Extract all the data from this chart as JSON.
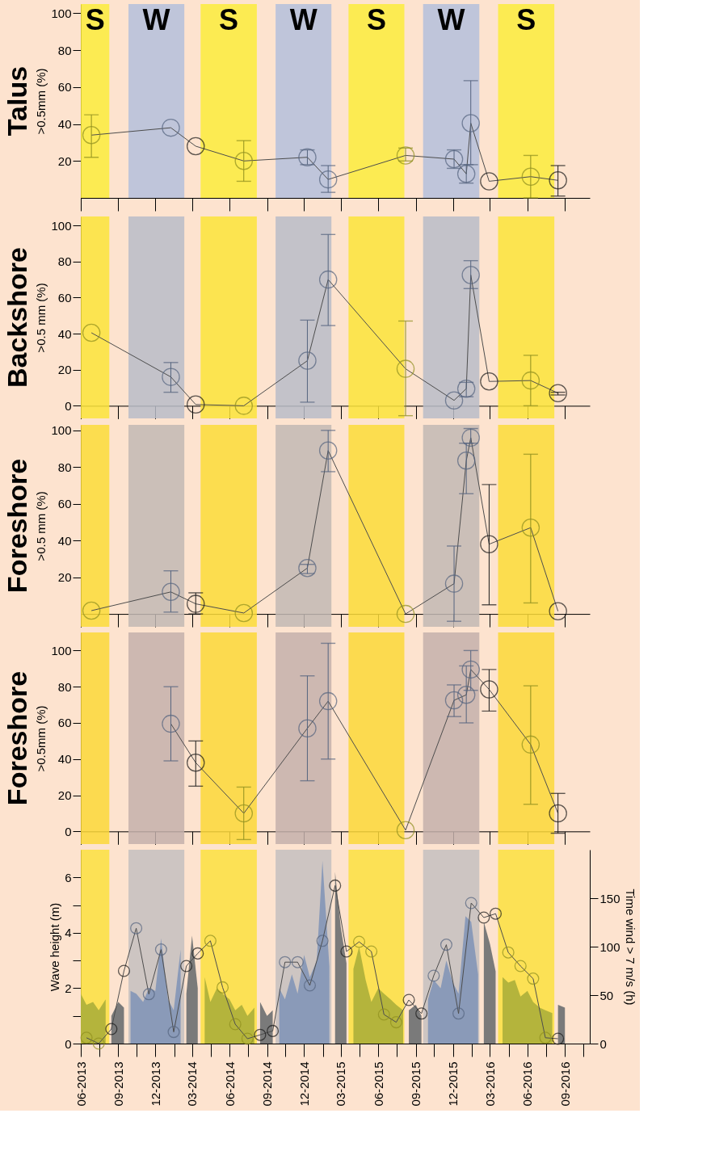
{
  "chart_data": [
    {
      "type": "line",
      "title": "Talus",
      "ylabel": ">0.5mm (%)",
      "xlim": [
        "2013-06-01",
        "2016-11-01"
      ],
      "xticks": [
        "2013-06-01",
        "2013-09-01",
        "2013-12-01",
        "2014-03-01",
        "2014-06-01",
        "2014-09-01",
        "2014-12-01",
        "2015-03-01",
        "2015-06-01",
        "2015-09-01",
        "2015-12-01",
        "2016-03-01",
        "2016-06-01",
        "2016-09-01"
      ],
      "ylim": [
        0,
        105
      ],
      "yticks": [
        20,
        40,
        60,
        80,
        100
      ],
      "tick_labels": "y",
      "marker": "circle",
      "line_style": "solid",
      "bands": [
        {
          "axis": "x",
          "from": "2013-06-01",
          "to": "2013-08-10",
          "label": "S",
          "color": "#fbec3c"
        },
        {
          "axis": "x",
          "from": "2013-09-26",
          "to": "2014-02-10",
          "label": "W",
          "color": "#b4c0dc"
        },
        {
          "axis": "x",
          "from": "2014-03-22",
          "to": "2014-08-07",
          "label": "S",
          "color": "#fbec3c"
        },
        {
          "axis": "x",
          "from": "2014-09-22",
          "to": "2015-02-06",
          "label": "W",
          "color": "#b4c0dc"
        },
        {
          "axis": "x",
          "from": "2015-03-20",
          "to": "2015-08-04",
          "label": "S",
          "color": "#fbec3c"
        },
        {
          "axis": "x",
          "from": "2015-09-19",
          "to": "2016-02-04",
          "label": "W",
          "color": "#b4c0dc"
        },
        {
          "axis": "x",
          "from": "2016-03-21",
          "to": "2016-08-06",
          "label": "S",
          "color": "#fbec3c"
        }
      ],
      "series": [
        {
          "color": "#4d4d4d",
          "x": [
            "2013-06-27",
            "2014-01-08",
            "2014-03-10",
            "2014-07-06",
            "2014-12-09",
            "2015-01-29",
            "2015-08-07",
            "2015-12-04",
            "2016-01-03",
            "2016-01-14",
            "2016-02-28",
            "2016-06-09",
            "2016-08-15"
          ],
          "values": [
            34,
            38,
            28,
            20,
            22,
            10,
            23,
            21,
            13,
            40.5,
            9,
            11.5,
            9.5
          ],
          "colors": [
            "#8f8f1e",
            "#55647f",
            "#1a1a1a",
            "#8f8f1e",
            "#55647f",
            "#55647f",
            "#8f8f1e",
            "#55647f",
            "#55647f",
            "#55647f",
            "#1a1a1a",
            "#8f8f1e",
            "#1a1a1a"
          ],
          "errors": [
            [
              22,
              45
            ],
            null,
            null,
            [
              9,
              31
            ],
            [
              18,
              26
            ],
            [
              3,
              17.5
            ],
            [
              20,
              27
            ],
            [
              16,
              26
            ],
            [
              8,
              18
            ],
            [
              18,
              63.5
            ],
            null,
            [
              0,
              23
            ],
            [
              1,
              17.5
            ]
          ]
        }
      ]
    },
    {
      "type": "line",
      "title": "Backshore",
      "ylabel": ">0.5 mm (%)",
      "xlim": [
        "2013-06-01",
        "2016-11-01"
      ],
      "xticks": [
        "2013-06-01",
        "2013-09-01",
        "2013-12-01",
        "2014-03-01",
        "2014-06-01",
        "2014-09-01",
        "2014-12-01",
        "2015-03-01",
        "2015-06-01",
        "2015-09-01",
        "2015-12-01",
        "2016-03-01",
        "2016-06-01",
        "2016-09-01"
      ],
      "ylim": [
        -7,
        105
      ],
      "yticks": [
        0,
        20,
        40,
        60,
        80,
        100
      ],
      "tick_labels": "y",
      "marker": "circle",
      "line_style": "solid",
      "bands": [
        {
          "axis": "x",
          "from": "2013-06-01",
          "to": "2013-08-10",
          "color": "#fbe43a"
        },
        {
          "axis": "x",
          "from": "2013-09-26",
          "to": "2014-02-10",
          "color": "#b9bcc8"
        },
        {
          "axis": "x",
          "from": "2014-03-22",
          "to": "2014-08-07",
          "color": "#fbe43a"
        },
        {
          "axis": "x",
          "from": "2014-09-22",
          "to": "2015-02-06",
          "color": "#b9bcc8"
        },
        {
          "axis": "x",
          "from": "2015-03-20",
          "to": "2015-08-04",
          "color": "#fbe43a"
        },
        {
          "axis": "x",
          "from": "2015-09-19",
          "to": "2016-02-04",
          "color": "#b9bcc8"
        },
        {
          "axis": "x",
          "from": "2016-03-21",
          "to": "2016-08-06",
          "color": "#fbe43a"
        }
      ],
      "series": [
        {
          "color": "#4d4d4d",
          "x": [
            "2013-06-27",
            "2014-01-08",
            "2014-03-10",
            "2014-07-06",
            "2014-12-09",
            "2015-01-29",
            "2015-08-07",
            "2015-12-04",
            "2016-01-03",
            "2016-01-14",
            "2016-02-28",
            "2016-06-09",
            "2016-08-15"
          ],
          "values": [
            40.5,
            16,
            0.7,
            0,
            25,
            70,
            20.5,
            3,
            9.5,
            72.5,
            13.5,
            14,
            7
          ],
          "colors": [
            "#8f8f1e",
            "#55647f",
            "#1a1a1a",
            "#8f8f1e",
            "#55647f",
            "#55647f",
            "#8f8f1e",
            "#55647f",
            "#55647f",
            "#55647f",
            "#1a1a1a",
            "#8f8f1e",
            "#1a1a1a"
          ],
          "errors": [
            null,
            [
              7.5,
              24
            ],
            null,
            null,
            [
              2,
              47.5
            ],
            [
              44.5,
              95
            ],
            [
              -5.5,
              47
            ],
            null,
            [
              5,
              13
            ],
            [
              65,
              80.5
            ],
            null,
            [
              0,
              28
            ],
            [
              6,
              7.5
            ]
          ]
        }
      ]
    },
    {
      "type": "line",
      "title": "Foreshore",
      "ylabel": ">0.5 mm (%)",
      "xlim": [
        "2013-06-01",
        "2016-11-01"
      ],
      "xticks": [
        "2013-06-01",
        "2013-09-01",
        "2013-12-01",
        "2014-03-01",
        "2014-06-01",
        "2014-09-01",
        "2014-12-01",
        "2015-03-01",
        "2015-06-01",
        "2015-09-01",
        "2015-12-01",
        "2016-03-01",
        "2016-06-01",
        "2016-09-01"
      ],
      "ylim": [
        -7,
        103
      ],
      "yticks": [
        20,
        40,
        60,
        80,
        100
      ],
      "tick_labels": "y",
      "marker": "circle",
      "line_style": "solid",
      "bands": [
        {
          "axis": "x",
          "from": "2013-06-01",
          "to": "2013-08-10",
          "color": "#fbdc38"
        },
        {
          "axis": "x",
          "from": "2013-09-26",
          "to": "2014-02-10",
          "color": "#c2b8b4"
        },
        {
          "axis": "x",
          "from": "2014-03-22",
          "to": "2014-08-07",
          "color": "#fbdc38"
        },
        {
          "axis": "x",
          "from": "2014-09-22",
          "to": "2015-02-06",
          "color": "#c2b8b4"
        },
        {
          "axis": "x",
          "from": "2015-03-20",
          "to": "2015-08-04",
          "color": "#fbdc38"
        },
        {
          "axis": "x",
          "from": "2015-09-19",
          "to": "2016-02-04",
          "color": "#c2b8b4"
        },
        {
          "axis": "x",
          "from": "2016-03-21",
          "to": "2016-08-06",
          "color": "#fbdc38"
        }
      ],
      "series": [
        {
          "color": "#4d4d4d",
          "x": [
            "2013-06-27",
            "2014-01-08",
            "2014-03-10",
            "2014-07-06",
            "2014-12-09",
            "2015-01-29",
            "2015-08-07",
            "2015-12-04",
            "2016-01-03",
            "2016-01-14",
            "2016-02-28",
            "2016-06-09",
            "2016-08-15"
          ],
          "values": [
            1.8,
            12,
            5.5,
            0.5,
            25,
            89,
            0,
            16.5,
            83.5,
            96,
            38,
            47,
            1.5
          ],
          "colors": [
            "#8f8f1e",
            "#55647f",
            "#1a1a1a",
            "#8f8f1e",
            "#55647f",
            "#55647f",
            "#8f8f1e",
            "#55647f",
            "#55647f",
            "#55647f",
            "#1a1a1a",
            "#8f8f1e",
            "#1a1a1a"
          ],
          "errors": [
            null,
            [
              1,
              23.5
            ],
            [
              0,
              11.5
            ],
            null,
            [
              22,
              27
            ],
            [
              77.5,
              100
            ],
            null,
            [
              -4,
              37
            ],
            [
              65.5,
              93
            ],
            [
              93,
              101
            ],
            [
              5,
              70.5
            ],
            [
              6,
              87
            ],
            null
          ]
        }
      ]
    },
    {
      "type": "line",
      "title": "Foreshore",
      "ylabel": ">0.5mm (%)",
      "xlim": [
        "2013-06-01",
        "2016-11-01"
      ],
      "xticks": [
        "2013-06-01",
        "2013-09-01",
        "2013-12-01",
        "2014-03-01",
        "2014-06-01",
        "2014-09-01",
        "2014-12-01",
        "2015-03-01",
        "2015-06-01",
        "2015-09-01",
        "2015-12-01",
        "2016-03-01",
        "2016-06-01",
        "2016-09-01"
      ],
      "ylim": [
        -7,
        110
      ],
      "yticks": [
        0,
        20,
        40,
        60,
        80,
        100
      ],
      "tick_labels": "y",
      "marker": "circle",
      "line_style": "solid",
      "bands": [
        {
          "axis": "x",
          "from": "2013-06-01",
          "to": "2013-08-10",
          "color": "#fbd838"
        },
        {
          "axis": "x",
          "from": "2013-09-26",
          "to": "2014-02-10",
          "color": "#c4b0ac"
        },
        {
          "axis": "x",
          "from": "2014-03-22",
          "to": "2014-08-07",
          "color": "#fbd838"
        },
        {
          "axis": "x",
          "from": "2014-09-22",
          "to": "2015-02-06",
          "color": "#c4b0ac"
        },
        {
          "axis": "x",
          "from": "2015-03-20",
          "to": "2015-08-04",
          "color": "#fbd838"
        },
        {
          "axis": "x",
          "from": "2015-09-19",
          "to": "2016-02-04",
          "color": "#c4b0ac"
        },
        {
          "axis": "x",
          "from": "2016-03-21",
          "to": "2016-08-06",
          "color": "#fbd838"
        }
      ],
      "series": [
        {
          "color": "#4d4d4d",
          "x": [
            "2014-01-08",
            "2014-03-10",
            "2014-07-06",
            "2014-12-09",
            "2015-01-29",
            "2015-08-07",
            "2015-12-04",
            "2016-01-03",
            "2016-01-14",
            "2016-02-28",
            "2016-06-09",
            "2016-08-15"
          ],
          "values": [
            59.5,
            38,
            10,
            57,
            72,
            0.7,
            72.5,
            75.5,
            89.5,
            78.5,
            48,
            10
          ],
          "colors": [
            "#55647f",
            "#1a1a1a",
            "#8f8f1e",
            "#55647f",
            "#55647f",
            "#8f8f1e",
            "#55647f",
            "#55647f",
            "#55647f",
            "#1a1a1a",
            "#8f8f1e",
            "#1a1a1a"
          ],
          "errors": [
            [
              39,
              80
            ],
            [
              25,
              50
            ],
            [
              -4.5,
              24.5
            ],
            [
              28,
              86
            ],
            [
              40,
              104
            ],
            null,
            [
              63.5,
              81
            ],
            [
              60,
              91.5
            ],
            [
              78,
              100
            ],
            [
              66.5,
              89.5
            ],
            [
              15,
              80.5
            ],
            [
              -1,
              21
            ]
          ]
        }
      ]
    },
    {
      "type": "area",
      "ylabel": "Wave height (m)",
      "y2label": "Time wind > 7 m/s (h)",
      "xlim": [
        "2013-06-01",
        "2016-11-01"
      ],
      "xticks": [
        {
          "value": "2013-06-01",
          "label": "06-2013"
        },
        {
          "value": "2013-07-16",
          "label": null
        },
        {
          "value": "2013-09-01",
          "label": "09-2013"
        },
        {
          "value": "2013-10-16",
          "label": null
        },
        {
          "value": "2013-12-01",
          "label": "12-2013"
        },
        {
          "value": "2014-01-16",
          "label": null
        },
        {
          "value": "2014-03-01",
          "label": "03-2014"
        },
        {
          "value": "2014-04-16",
          "label": null
        },
        {
          "value": "2014-06-01",
          "label": "06-2014"
        },
        {
          "value": "2014-07-16",
          "label": null
        },
        {
          "value": "2014-09-01",
          "label": "09-2014"
        },
        {
          "value": "2014-10-16",
          "label": null
        },
        {
          "value": "2014-12-01",
          "label": "12-2014"
        },
        {
          "value": "2015-01-16",
          "label": null
        },
        {
          "value": "2015-03-01",
          "label": "03-2015"
        },
        {
          "value": "2015-04-16",
          "label": null
        },
        {
          "value": "2015-06-01",
          "label": "06-2015"
        },
        {
          "value": "2015-07-16",
          "label": null
        },
        {
          "value": "2015-09-01",
          "label": "09-2015"
        },
        {
          "value": "2015-10-16",
          "label": null
        },
        {
          "value": "2015-12-01",
          "label": "12-2015"
        },
        {
          "value": "2016-01-16",
          "label": null
        },
        {
          "value": "2016-03-01",
          "label": "03-2016"
        },
        {
          "value": "2016-04-16",
          "label": null
        },
        {
          "value": "2016-06-01",
          "label": "06-2016"
        },
        {
          "value": "2016-07-16",
          "label": null
        },
        {
          "value": "2016-09-01",
          "label": "09-2016"
        },
        {
          "value": "2016-10-16",
          "label": null
        }
      ],
      "ylim": [
        0,
        7
      ],
      "yticks": [
        0,
        {
          "value": 1,
          "label": null
        },
        2,
        {
          "value": 3,
          "label": null
        },
        4,
        {
          "value": 5,
          "label": null
        },
        6
      ],
      "y2lim": [
        0,
        200
      ],
      "y2ticks": [
        0,
        50,
        100,
        150
      ],
      "line_style": "solid",
      "bands": [
        {
          "axis": "x",
          "from": "2013-06-01",
          "to": "2013-08-10",
          "color": "#fbe040"
        },
        {
          "axis": "x",
          "from": "2013-09-26",
          "to": "2014-02-10",
          "color": "#c4c0c0"
        },
        {
          "axis": "x",
          "from": "2014-03-22",
          "to": "2014-08-07",
          "color": "#fbe040"
        },
        {
          "axis": "x",
          "from": "2014-09-22",
          "to": "2015-02-06",
          "color": "#c4c0c0"
        },
        {
          "axis": "x",
          "from": "2015-03-20",
          "to": "2015-08-04",
          "color": "#fbe040"
        },
        {
          "axis": "x",
          "from": "2015-09-19",
          "to": "2016-02-04",
          "color": "#c4c0c0"
        },
        {
          "axis": "x",
          "from": "2016-03-21",
          "to": "2016-08-06",
          "color": "#fbe040"
        }
      ],
      "series": [
        {
          "type": "area",
          "color": "#b4b43c",
          "x": [
            "2013-06-01",
            "2013-06-15",
            "2013-07-01",
            "2013-07-15",
            "2013-08-01"
          ],
          "values": [
            1.8,
            1.4,
            1.5,
            1.2,
            1.6
          ]
        },
        {
          "type": "area",
          "color": "#7a7a7a",
          "x": [
            "2013-08-15",
            "2013-09-01",
            "2013-09-15"
          ],
          "values": [
            1.0,
            1.5,
            1.3
          ]
        },
        {
          "type": "area",
          "color": "#8a9ab8",
          "x": [
            "2013-10-01",
            "2013-10-15",
            "2013-11-01",
            "2013-11-15",
            "2013-12-01",
            "2013-12-15",
            "2014-01-01",
            "2014-01-15",
            "2014-02-01"
          ],
          "values": [
            1.9,
            1.8,
            1.5,
            2.0,
            1.9,
            3.8,
            1.6,
            1.2,
            3.4
          ]
        },
        {
          "type": "area",
          "color": "#7a7a7a",
          "x": [
            "2014-02-15",
            "2014-03-01",
            "2014-03-15"
          ],
          "values": [
            1.8,
            3.9,
            2.0
          ]
        },
        {
          "type": "area",
          "color": "#b4b43c",
          "x": [
            "2014-04-01",
            "2014-04-15",
            "2014-05-01",
            "2014-05-15",
            "2014-06-01",
            "2014-06-15",
            "2014-07-01",
            "2014-07-15",
            "2014-08-01"
          ],
          "values": [
            2.4,
            1.5,
            2.0,
            1.8,
            1.6,
            1.2,
            1.4,
            1.0,
            1.3
          ]
        },
        {
          "type": "area",
          "color": "#7a7a7a",
          "x": [
            "2014-08-15",
            "2014-09-01",
            "2014-09-15"
          ],
          "values": [
            1.5,
            1.0,
            1.2
          ]
        },
        {
          "type": "area",
          "color": "#8a9ab8",
          "x": [
            "2014-10-01",
            "2014-10-15",
            "2014-11-01",
            "2014-11-15",
            "2014-12-01",
            "2014-12-15",
            "2015-01-01",
            "2015-01-15",
            "2015-02-01"
          ],
          "values": [
            2.0,
            1.6,
            2.5,
            1.8,
            3.2,
            2.4,
            3.0,
            6.6,
            2.8
          ]
        },
        {
          "type": "area",
          "color": "#7a7a7a",
          "x": [
            "2015-02-15",
            "2015-03-01",
            "2015-03-15"
          ],
          "values": [
            6.2,
            4.2,
            2.9
          ]
        },
        {
          "type": "area",
          "color": "#b4b43c",
          "x": [
            "2015-04-01",
            "2015-04-15",
            "2015-05-01",
            "2015-05-15",
            "2015-06-01",
            "2015-06-15",
            "2015-07-01",
            "2015-07-15",
            "2015-08-01"
          ],
          "values": [
            2.7,
            3.5,
            2.3,
            1.5,
            2.0,
            1.8,
            1.6,
            1.4,
            1.2
          ]
        },
        {
          "type": "area",
          "color": "#7a7a7a",
          "x": [
            "2015-08-15",
            "2015-09-01",
            "2015-09-15"
          ],
          "values": [
            1.2,
            1.4,
            1.0
          ]
        },
        {
          "type": "area",
          "color": "#8a9ab8",
          "x": [
            "2015-10-01",
            "2015-10-15",
            "2015-11-01",
            "2015-11-15",
            "2015-12-01",
            "2015-12-15",
            "2016-01-01",
            "2016-01-15",
            "2016-02-01"
          ],
          "values": [
            1.6,
            2.3,
            2.0,
            3.0,
            2.2,
            1.8,
            4.6,
            4.4,
            2.5
          ]
        },
        {
          "type": "area",
          "color": "#7a7a7a",
          "x": [
            "2016-02-15",
            "2016-03-01",
            "2016-03-15"
          ],
          "values": [
            4.4,
            3.6,
            2.6
          ]
        },
        {
          "type": "area",
          "color": "#b4b43c",
          "x": [
            "2016-04-01",
            "2016-04-15",
            "2016-05-01",
            "2016-05-15",
            "2016-06-01",
            "2016-06-15",
            "2016-07-01",
            "2016-07-15",
            "2016-08-01"
          ],
          "values": [
            2.4,
            2.2,
            2.3,
            1.7,
            1.9,
            1.5,
            1.3,
            1.2,
            1.1
          ]
        },
        {
          "type": "area",
          "color": "#7a7a7a",
          "x": [
            "2016-08-15",
            "2016-09-01"
          ],
          "values": [
            1.4,
            1.3
          ]
        },
        {
          "type": "line",
          "axis": "y2",
          "marker": "circle",
          "color": "#4d4d4d",
          "x": [
            "2013-06-15",
            "2013-07-15",
            "2013-08-15",
            "2013-09-15",
            "2013-10-15",
            "2013-11-15",
            "2013-12-15",
            "2014-01-15",
            "2014-02-15",
            "2014-03-15",
            "2014-04-15",
            "2014-05-15",
            "2014-06-15",
            "2014-07-15",
            "2014-08-15",
            "2014-09-15",
            "2014-10-15",
            "2014-11-15",
            "2014-12-15",
            "2015-01-15",
            "2015-02-15",
            "2015-03-15",
            "2015-04-15",
            "2015-05-15",
            "2015-06-15",
            "2015-07-15",
            "2015-08-15",
            "2015-09-15",
            "2015-10-15",
            "2015-11-15",
            "2015-12-15",
            "2016-01-15",
            "2016-02-15",
            "2016-03-15",
            "2016-04-15",
            "2016-05-15",
            "2016-06-15",
            "2016-07-15",
            "2016-08-15"
          ],
          "values": [
            6,
            0,
            15,
            75,
            119,
            51,
            97,
            12,
            80,
            93,
            106,
            58,
            20,
            5,
            9,
            13,
            84,
            84,
            60,
            106,
            163,
            95,
            105,
            95,
            30,
            22,
            45,
            31,
            70,
            102,
            31,
            145,
            130,
            134,
            94,
            80,
            67,
            6,
            5
          ],
          "colors": [
            "#8f8f1e",
            "#8f8f1e",
            "#1a1a1a",
            "#1a1a1a",
            "#55647f",
            "#55647f",
            "#55647f",
            "#55647f",
            "#1a1a1a",
            "#1a1a1a",
            "#8f8f1e",
            "#8f8f1e",
            "#8f8f1e",
            "#8f8f1e",
            "#1a1a1a",
            "#1a1a1a",
            "#55647f",
            "#55647f",
            "#55647f",
            "#55647f",
            "#1a1a1a",
            "#1a1a1a",
            "#8f8f1e",
            "#8f8f1e",
            "#8f8f1e",
            "#8f8f1e",
            "#1a1a1a",
            "#1a1a1a",
            "#55647f",
            "#55647f",
            "#55647f",
            "#55647f",
            "#1a1a1a",
            "#1a1a1a",
            "#8f8f1e",
            "#8f8f1e",
            "#8f8f1e",
            "#8f8f1e",
            "#1a1a1a"
          ]
        }
      ]
    }
  ]
}
